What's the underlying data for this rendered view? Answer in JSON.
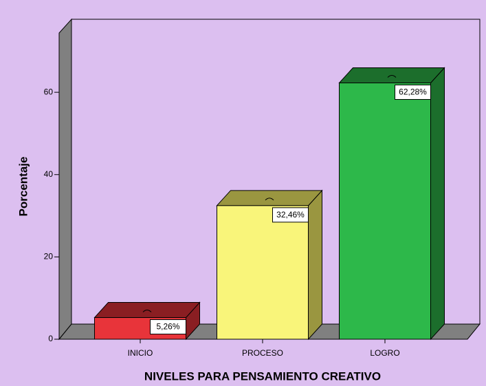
{
  "chart_data": {
    "type": "bar3d",
    "xlabel": "NIVELES PARA PENSAMIENTO CREATIVO",
    "ylabel": "Porcentaje",
    "categories": [
      "INICIO",
      "PROCESO",
      "LOGRO"
    ],
    "values": [
      5.26,
      32.46,
      62.28
    ],
    "value_labels": [
      "5,26%",
      "32,46%",
      "62,28%"
    ],
    "colors": [
      "#e8343a",
      "#f9f57a",
      "#2db84a"
    ],
    "side_colors": [
      "#8a1e22",
      "#9a9640",
      "#1c6e2c"
    ],
    "ylim": [
      0,
      74.4
    ],
    "yticks": [
      0,
      20,
      40,
      60
    ]
  }
}
